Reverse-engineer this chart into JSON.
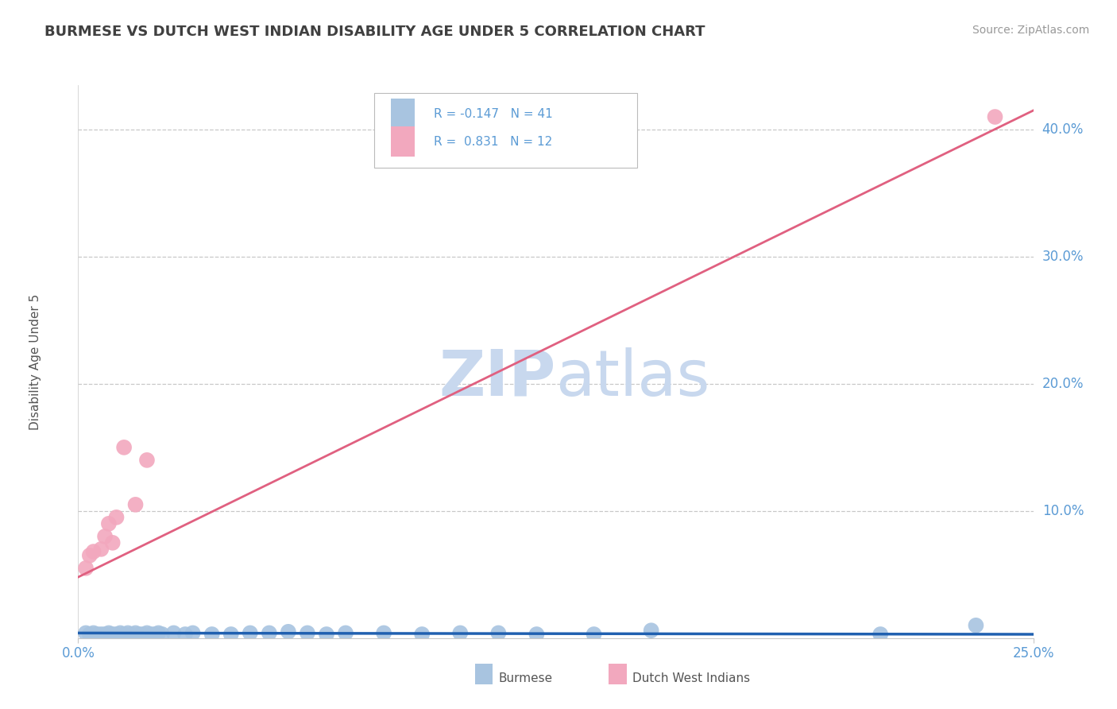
{
  "title": "BURMESE VS DUTCH WEST INDIAN DISABILITY AGE UNDER 5 CORRELATION CHART",
  "source_text": "Source: ZipAtlas.com",
  "xlim": [
    0.0,
    0.25
  ],
  "ylim": [
    0.0,
    0.435
  ],
  "ytick_vals": [
    0.1,
    0.2,
    0.3,
    0.4
  ],
  "ytick_labels": [
    "10.0%",
    "20.0%",
    "30.0%",
    "40.0%"
  ],
  "xtick_vals": [
    0.0,
    0.25
  ],
  "xtick_labels": [
    "0.0%",
    "25.0%"
  ],
  "legend_r1": "R = -0.147",
  "legend_n1": "N = 41",
  "legend_r2": "R =  0.831",
  "legend_n2": "N = 12",
  "burmese_color": "#a8c4e0",
  "dutch_color": "#f2a8be",
  "burmese_line_color": "#2060b0",
  "dutch_line_color": "#e06080",
  "title_color": "#404040",
  "axis_color": "#5b9bd5",
  "grid_color": "#c8c8c8",
  "watermark_color": "#c8d8ee",
  "burmese_x": [
    0.002,
    0.003,
    0.004,
    0.005,
    0.006,
    0.007,
    0.008,
    0.009,
    0.01,
    0.011,
    0.012,
    0.013,
    0.014,
    0.015,
    0.016,
    0.017,
    0.018,
    0.019,
    0.02,
    0.021,
    0.022,
    0.025,
    0.028,
    0.03,
    0.035,
    0.04,
    0.045,
    0.05,
    0.055,
    0.06,
    0.065,
    0.07,
    0.08,
    0.09,
    0.1,
    0.11,
    0.12,
    0.135,
    0.15,
    0.21,
    0.235
  ],
  "burmese_y": [
    0.004,
    0.003,
    0.004,
    0.003,
    0.003,
    0.003,
    0.004,
    0.003,
    0.003,
    0.004,
    0.003,
    0.004,
    0.003,
    0.004,
    0.003,
    0.003,
    0.004,
    0.003,
    0.003,
    0.004,
    0.003,
    0.004,
    0.003,
    0.004,
    0.003,
    0.003,
    0.004,
    0.004,
    0.005,
    0.004,
    0.003,
    0.004,
    0.004,
    0.003,
    0.004,
    0.004,
    0.003,
    0.003,
    0.006,
    0.003,
    0.01
  ],
  "dutch_x": [
    0.002,
    0.003,
    0.004,
    0.006,
    0.007,
    0.008,
    0.009,
    0.01,
    0.012,
    0.015,
    0.018,
    0.24
  ],
  "dutch_y": [
    0.055,
    0.065,
    0.068,
    0.07,
    0.08,
    0.09,
    0.075,
    0.095,
    0.15,
    0.105,
    0.14,
    0.41
  ],
  "burmese_trend_x": [
    0.0,
    0.25
  ],
  "burmese_trend_y": [
    0.004,
    0.003
  ],
  "dutch_trend_x": [
    0.0,
    0.25
  ],
  "dutch_trend_y": [
    0.048,
    0.415
  ],
  "bottom_legend_label1": "Burmese",
  "bottom_legend_label2": "Dutch West Indians",
  "ylabel": "Disability Age Under 5"
}
